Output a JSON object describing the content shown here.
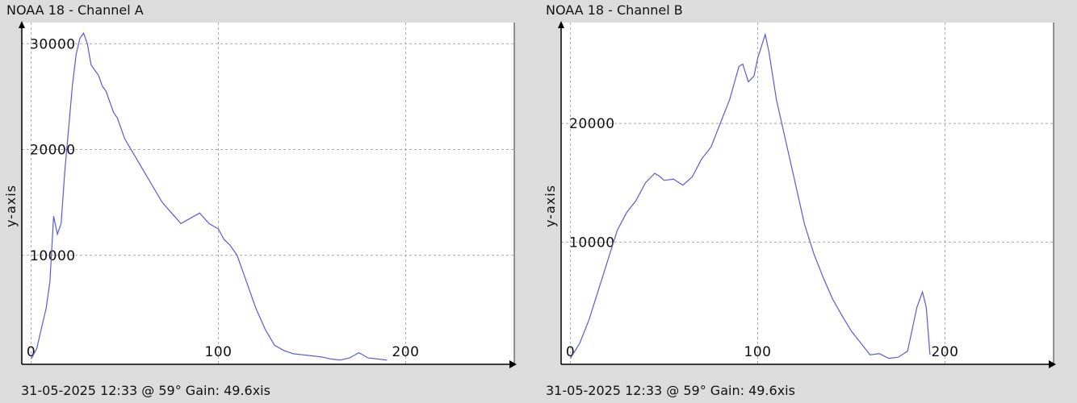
{
  "chart_data": [
    {
      "type": "line",
      "title": "NOAA 18 - Channel A",
      "ylabel": "y-axis",
      "footer": "31-05-2025 12:33 @ 59° Gain: 49.6xis",
      "xlim": [
        -5,
        258
      ],
      "ylim": [
        -300,
        32000
      ],
      "xticks": [
        0,
        100,
        200
      ],
      "yticks": [
        10000,
        20000,
        30000
      ],
      "grid": true,
      "color": "#5a5ad6",
      "series": [
        {
          "x": [
            0,
            3,
            6,
            8,
            10,
            12,
            14,
            16,
            18,
            20,
            22,
            24,
            26,
            28,
            30,
            32,
            34,
            36,
            38,
            40,
            42,
            44,
            46,
            48,
            50,
            55,
            60,
            65,
            70,
            75,
            80,
            85,
            90,
            95,
            100,
            103,
            106,
            110,
            115,
            120,
            125,
            130,
            135,
            140,
            145,
            150,
            155,
            160,
            165,
            170,
            175,
            180,
            185,
            190
          ],
          "y": [
            200,
            1200,
            3500,
            5000,
            7500,
            13700,
            12000,
            13000,
            18000,
            22000,
            26000,
            29000,
            30500,
            31000,
            30000,
            28000,
            27500,
            27000,
            26000,
            25500,
            24500,
            23500,
            23000,
            22000,
            21000,
            19500,
            18000,
            16500,
            15000,
            14000,
            13000,
            13500,
            14000,
            13000,
            12500,
            11500,
            11000,
            10000,
            7500,
            5000,
            3000,
            1500,
            1000,
            700,
            600,
            500,
            400,
            200,
            100,
            300,
            800,
            300,
            200,
            100
          ]
        }
      ]
    },
    {
      "type": "line",
      "title": "NOAA 18 - Channel B",
      "ylabel": "y-axis",
      "footer": "31-05-2025 12:33 @ 59° Gain: 49.6xis",
      "xlim": [
        -5,
        258
      ],
      "ylim": [
        -300,
        28500
      ],
      "xticks": [
        0,
        100,
        200
      ],
      "yticks": [
        10000,
        20000
      ],
      "grid": true,
      "color": "#5a5ad6",
      "series": [
        {
          "x": [
            0,
            5,
            10,
            15,
            20,
            25,
            30,
            35,
            40,
            45,
            48,
            50,
            55,
            60,
            65,
            70,
            75,
            80,
            85,
            90,
            92,
            95,
            98,
            100,
            102,
            104,
            106,
            110,
            115,
            120,
            125,
            130,
            135,
            140,
            145,
            150,
            155,
            160,
            165,
            170,
            175,
            180,
            185,
            188,
            190,
            192
          ],
          "y": [
            200,
            1500,
            3500,
            6000,
            8500,
            11000,
            12500,
            13500,
            15000,
            15800,
            15500,
            15200,
            15300,
            14800,
            15500,
            17000,
            18000,
            20000,
            22000,
            24800,
            25000,
            23500,
            24000,
            25500,
            26500,
            27500,
            26000,
            22000,
            18500,
            15000,
            11500,
            9000,
            7000,
            5200,
            3800,
            2500,
            1500,
            500,
            600,
            200,
            300,
            800,
            4500,
            5800,
            4500,
            500
          ]
        }
      ]
    }
  ]
}
